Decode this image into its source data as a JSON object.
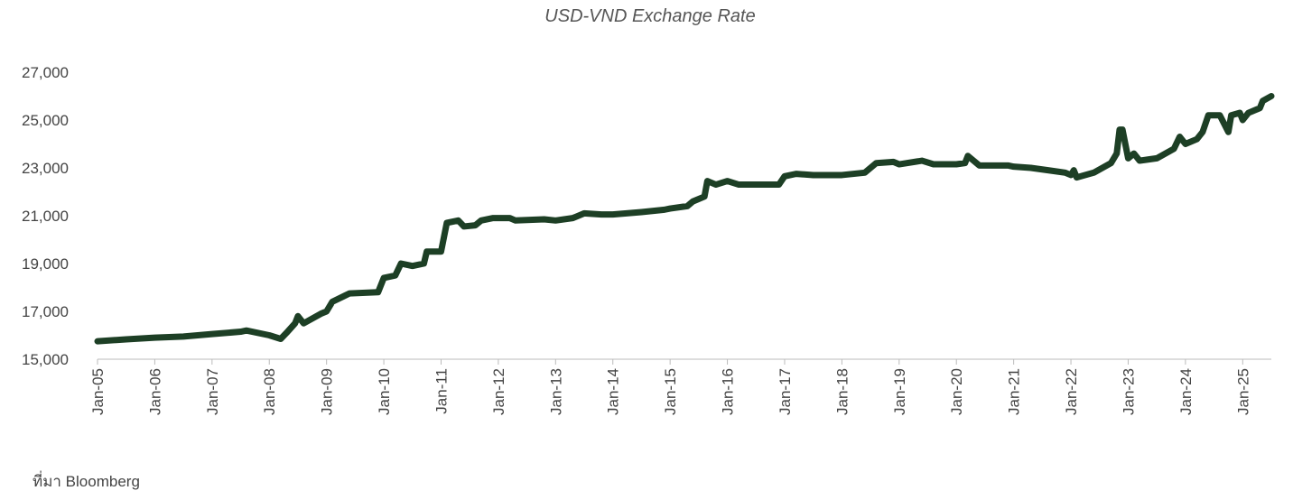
{
  "chart_data": {
    "type": "line",
    "title": "USD-VND Exchange Rate",
    "source": "ที่มา  Bloomberg",
    "x": [
      2005.0,
      2005.5,
      2006.0,
      2006.5,
      2007.0,
      2007.5,
      2007.6,
      2008.0,
      2008.2,
      2008.3,
      2008.45,
      2008.5,
      2008.6,
      2008.9,
      2009.0,
      2009.1,
      2009.4,
      2009.9,
      2010.0,
      2010.2,
      2010.3,
      2010.5,
      2010.7,
      2010.75,
      2011.0,
      2011.1,
      2011.3,
      2011.4,
      2011.6,
      2011.7,
      2011.9,
      2012.2,
      2012.3,
      2012.8,
      2013.0,
      2013.3,
      2013.5,
      2013.8,
      2014.0,
      2014.5,
      2014.9,
      2015.0,
      2015.3,
      2015.4,
      2015.6,
      2015.65,
      2015.8,
      2016.0,
      2016.2,
      2016.6,
      2016.9,
      2017.0,
      2017.2,
      2017.5,
      2018.0,
      2018.4,
      2018.6,
      2018.9,
      2019.0,
      2019.4,
      2019.6,
      2020.0,
      2020.15,
      2020.2,
      2020.4,
      2020.9,
      2021.0,
      2021.3,
      2021.6,
      2021.9,
      2022.0,
      2022.05,
      2022.1,
      2022.4,
      2022.7,
      2022.8,
      2022.85,
      2022.9,
      2023.0,
      2023.1,
      2023.2,
      2023.5,
      2023.8,
      2023.9,
      2024.0,
      2024.2,
      2024.3,
      2024.4,
      2024.6,
      2024.75,
      2024.8,
      2024.95,
      2025.0,
      2025.1,
      2025.3,
      2025.35,
      2025.5
    ],
    "series": [
      {
        "name": "USD-VND",
        "color": "#1d3f25",
        "values": [
          15750,
          15830,
          15900,
          15950,
          16050,
          16150,
          16200,
          16000,
          15850,
          16100,
          16500,
          16800,
          16500,
          16900,
          17000,
          17400,
          17750,
          17800,
          18400,
          18500,
          19000,
          18900,
          19000,
          19500,
          19500,
          20700,
          20800,
          20550,
          20600,
          20800,
          20900,
          20900,
          20800,
          20850,
          20800,
          20900,
          21100,
          21050,
          21050,
          21150,
          21250,
          21300,
          21400,
          21600,
          21800,
          22450,
          22300,
          22450,
          22300,
          22300,
          22300,
          22650,
          22750,
          22700,
          22700,
          22800,
          23200,
          23250,
          23150,
          23300,
          23150,
          23150,
          23200,
          23500,
          23100,
          23100,
          23050,
          23000,
          22900,
          22800,
          22700,
          22900,
          22600,
          22800,
          23200,
          23600,
          24600,
          24600,
          23400,
          23600,
          23300,
          23400,
          23800,
          24300,
          24000,
          24200,
          24500,
          25200,
          25200,
          24500,
          25200,
          25300,
          25000,
          25300,
          25500,
          25800,
          26000
        ]
      }
    ],
    "xlim": [
      2005,
      2025.5
    ],
    "xticks": [
      {
        "value": 2005,
        "label": "Jan-05"
      },
      {
        "value": 2006,
        "label": "Jan-06"
      },
      {
        "value": 2007,
        "label": "Jan-07"
      },
      {
        "value": 2008,
        "label": "Jan-08"
      },
      {
        "value": 2009,
        "label": "Jan-09"
      },
      {
        "value": 2010,
        "label": "Jan-10"
      },
      {
        "value": 2011,
        "label": "Jan-11"
      },
      {
        "value": 2012,
        "label": "Jan-12"
      },
      {
        "value": 2013,
        "label": "Jan-13"
      },
      {
        "value": 2014,
        "label": "Jan-14"
      },
      {
        "value": 2015,
        "label": "Jan-15"
      },
      {
        "value": 2016,
        "label": "Jan-16"
      },
      {
        "value": 2017,
        "label": "Jan-17"
      },
      {
        "value": 2018,
        "label": "Jan-18"
      },
      {
        "value": 2019,
        "label": "Jan-19"
      },
      {
        "value": 2020,
        "label": "Jan-20"
      },
      {
        "value": 2021,
        "label": "Jan-21"
      },
      {
        "value": 2022,
        "label": "Jan-22"
      },
      {
        "value": 2023,
        "label": "Jan-23"
      },
      {
        "value": 2024,
        "label": "Jan-24"
      },
      {
        "value": 2025,
        "label": "Jan-25"
      }
    ],
    "ylim": [
      15000,
      27000
    ],
    "yticks": [
      {
        "value": 15000,
        "label": "15,000"
      },
      {
        "value": 17000,
        "label": "17,000"
      },
      {
        "value": 19000,
        "label": "19,000"
      },
      {
        "value": 21000,
        "label": "21,000"
      },
      {
        "value": 23000,
        "label": "23,000"
      },
      {
        "value": 25000,
        "label": "25,000"
      },
      {
        "value": 27000,
        "label": "27,000"
      }
    ],
    "grid": false
  }
}
